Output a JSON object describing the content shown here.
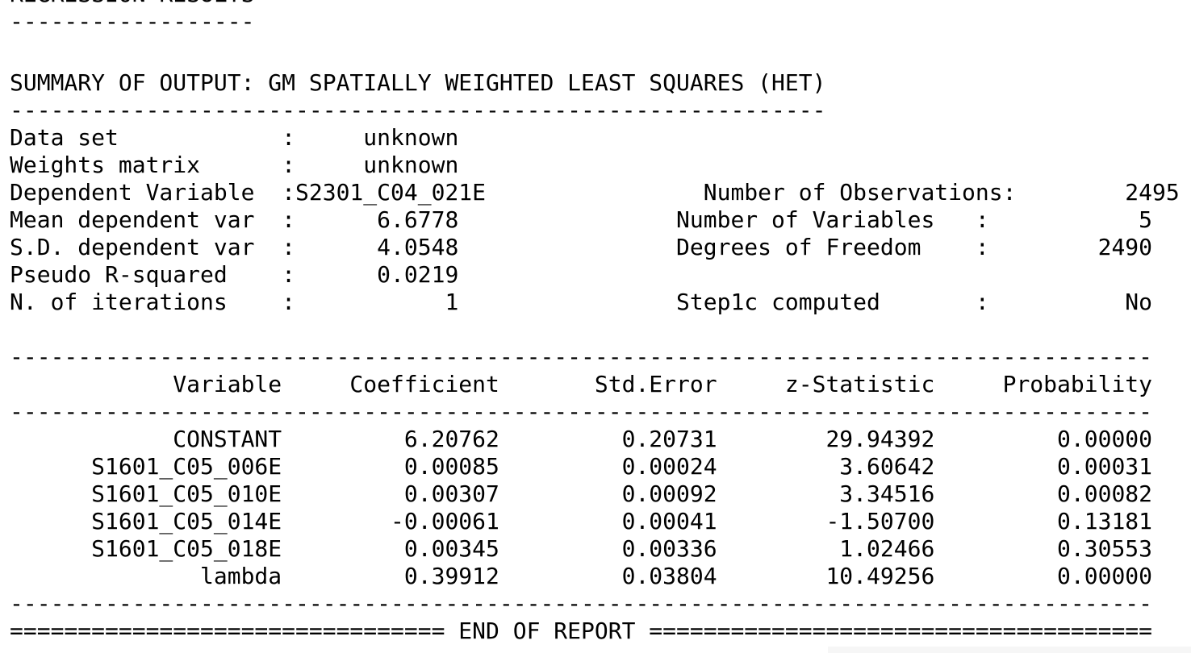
{
  "report": {
    "header": {
      "title": "REGRESSION RESULTS",
      "title_rule": "------------------"
    },
    "summary": {
      "title": "SUMMARY OF OUTPUT: GM SPATIALLY WEIGHTED LEAST SQUARES (HET)",
      "title_rule": "------------------------------------------------------------"
    },
    "info_lines": [
      "Data set            :     unknown",
      "Weights matrix      :     unknown",
      "Dependent Variable  :S2301_C04_021E                Number of Observations:        2495",
      "Mean dependent var  :      6.6778                Number of Variables   :           5",
      "S.D. dependent var  :      4.0548                Degrees of Freedom    :        2490",
      "Pseudo R-squared    :      0.0219",
      "N. of iterations    :           1                Step1c computed       :          No"
    ],
    "table": {
      "rule": "------------------------------------------------------------------------------------",
      "header_line": "            Variable     Coefficient       Std.Error     z-Statistic     Probability",
      "rows": [
        "            CONSTANT         6.20762         0.20731        29.94392         0.00000",
        "      S1601_C05_006E         0.00085         0.00024         3.60642         0.00031",
        "      S1601_C05_010E         0.00307         0.00092         3.34516         0.00082",
        "      S1601_C05_014E        -0.00061         0.00041        -1.50700         0.13181",
        "      S1601_C05_018E         0.00345         0.00336         1.02466         0.30553",
        "              lambda         0.39912         0.03804        10.49256         0.00000"
      ]
    },
    "footer": "================================ END OF REPORT ====================================="
  }
}
